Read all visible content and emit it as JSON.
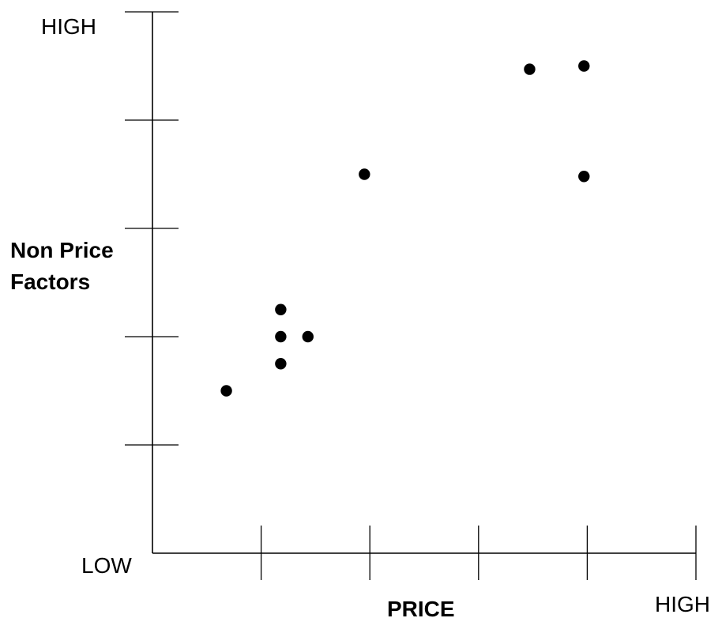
{
  "chart_data": {
    "type": "scatter",
    "title": "",
    "xlabel": "PRICE",
    "ylabel": [
      "Non Price",
      "Factors"
    ],
    "x_low_label": "LOW",
    "x_high_label": "HIGH",
    "y_high_label": "HIGH",
    "xlim": [
      0,
      5
    ],
    "ylim": [
      0,
      5
    ],
    "x_ticks": [
      1,
      2,
      3,
      4,
      5
    ],
    "y_ticks": [
      1,
      2,
      3,
      4,
      5
    ],
    "grid": false,
    "legend": "none",
    "point_color": "#000000",
    "points": [
      {
        "x": 0.68,
        "y": 1.5
      },
      {
        "x": 1.18,
        "y": 1.75
      },
      {
        "x": 1.18,
        "y": 2.0
      },
      {
        "x": 1.18,
        "y": 2.25
      },
      {
        "x": 1.43,
        "y": 2.0
      },
      {
        "x": 1.95,
        "y": 3.5
      },
      {
        "x": 3.47,
        "y": 4.47
      },
      {
        "x": 3.97,
        "y": 4.5
      },
      {
        "x": 3.97,
        "y": 3.48
      }
    ]
  }
}
